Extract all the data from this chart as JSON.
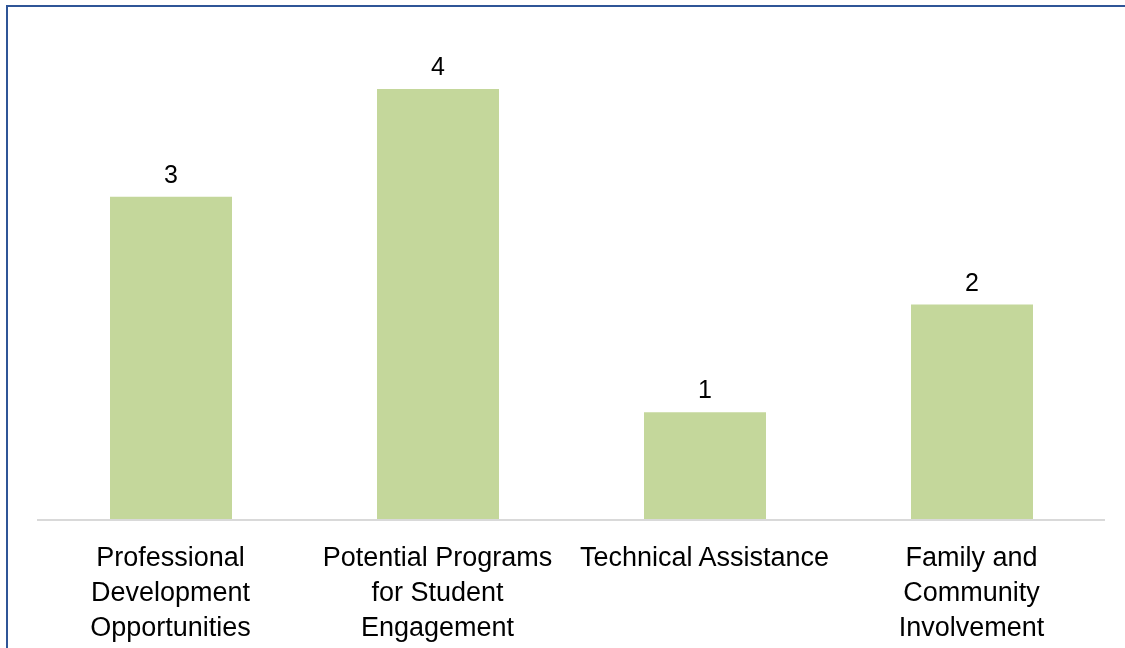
{
  "chart_data": {
    "type": "bar",
    "categories": [
      "Professional Development Opportunities",
      "Potential Programs for Student Engagement",
      "Technical Assistance",
      "Family and Community Involvement"
    ],
    "values": [
      3,
      4,
      1,
      2
    ],
    "color": "#c4d79b",
    "data_labels": true,
    "tick_labels": "x"
  }
}
